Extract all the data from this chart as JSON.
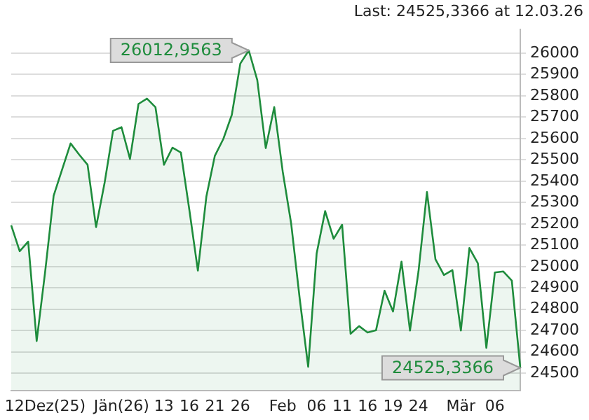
{
  "chart_data": {
    "type": "area",
    "title": "Last: 24525,3366 at 12.03.26",
    "categories": [
      null,
      null,
      null,
      null,
      "12Dez(25)",
      null,
      null,
      null,
      null,
      null,
      null,
      null,
      null,
      "Jän(26)",
      null,
      null,
      null,
      null,
      "13",
      null,
      null,
      "16",
      null,
      null,
      "21",
      null,
      null,
      "26",
      null,
      null,
      null,
      null,
      "Feb",
      null,
      null,
      null,
      "06",
      null,
      null,
      "11",
      null,
      null,
      "16",
      null,
      null,
      "19",
      null,
      null,
      "24",
      null,
      null,
      null,
      null,
      "Mär",
      null,
      null,
      null,
      "06",
      null,
      null,
      null
    ],
    "series": [
      {
        "color": "#1e8c3c",
        "values": [
          25193,
          25072,
          25117,
          24651,
          24976,
          25332,
          25455,
          25577,
          25525,
          25477,
          25185,
          25391,
          25636,
          25653,
          25504,
          25762,
          25787,
          25747,
          25477,
          25557,
          25534,
          25264,
          24981,
          25328,
          25519,
          25598,
          25711,
          25951,
          26012.9563,
          25874,
          25555,
          25747,
          25445,
          25200,
          24850,
          24530,
          25062,
          25260,
          25130,
          25196,
          24685,
          24721,
          24691,
          24702,
          24887,
          24789,
          25023,
          24700,
          24977,
          25349,
          25034,
          24960,
          24983,
          24700,
          25087,
          25015,
          24619,
          24972,
          24977,
          24934,
          24525.3366
        ],
        "value_labels": [
          null,
          null,
          null,
          null,
          null,
          null,
          null,
          null,
          null,
          null,
          null,
          null,
          null,
          null,
          null,
          null,
          null,
          null,
          null,
          null,
          null,
          null,
          null,
          null,
          null,
          null,
          null,
          null,
          "26012,9563",
          null,
          null,
          null,
          null,
          null,
          null,
          null,
          null,
          null,
          null,
          null,
          null,
          null,
          null,
          null,
          null,
          null,
          null,
          null,
          null,
          null,
          null,
          null,
          null,
          null,
          null,
          null,
          null,
          null,
          null,
          null,
          "24525,3366"
        ]
      }
    ],
    "ylim": [
      24420,
      26110
    ],
    "yticks": [
      24500,
      24600,
      24700,
      24800,
      24900,
      25000,
      25100,
      25200,
      25300,
      25400,
      25500,
      25600,
      25700,
      25800,
      25900,
      26000
    ],
    "grid": "y"
  }
}
